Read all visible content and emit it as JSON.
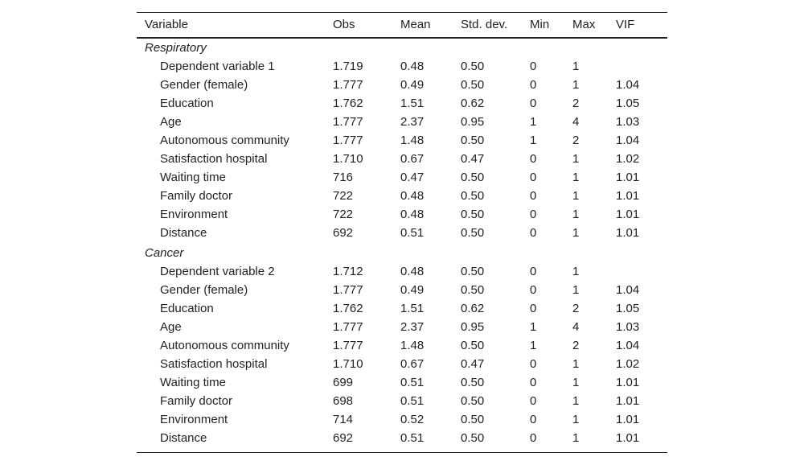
{
  "table": {
    "columns": [
      "Variable",
      "Obs",
      "Mean",
      "Std. dev.",
      "Min",
      "Max",
      "VIF"
    ],
    "groups": [
      {
        "name": "Respiratory",
        "rows": [
          [
            "Dependent variable 1",
            "1.719",
            "0.48",
            "0.50",
            "0",
            "1",
            null
          ],
          [
            "Gender (female)",
            "1.777",
            "0.49",
            "0.50",
            "0",
            "1",
            "1.04"
          ],
          [
            "Education",
            "1.762",
            "1.51",
            "0.62",
            "0",
            "2",
            "1.05"
          ],
          [
            "Age",
            "1.777",
            "2.37",
            "0.95",
            "1",
            "4",
            "1.03"
          ],
          [
            "Autonomous community",
            "1.777",
            "1.48",
            "0.50",
            "1",
            "2",
            "1.04"
          ],
          [
            "Satisfaction hospital",
            "1.710",
            "0.67",
            "0.47",
            "0",
            "1",
            "1.02"
          ],
          [
            "Waiting time",
            "716",
            "0.47",
            "0.50",
            "0",
            "1",
            "1.01"
          ],
          [
            "Family doctor",
            "722",
            "0.48",
            "0.50",
            "0",
            "1",
            "1.01"
          ],
          [
            "Environment",
            "722",
            "0.48",
            "0.50",
            "0",
            "1",
            "1.01"
          ],
          [
            "Distance",
            "692",
            "0.51",
            "0.50",
            "0",
            "1",
            "1.01"
          ]
        ]
      },
      {
        "name": "Cancer",
        "rows": [
          [
            "Dependent variable 2",
            "1.712",
            "0.48",
            "0.50",
            "0",
            "1",
            null
          ],
          [
            "Gender (female)",
            "1.777",
            "0.49",
            "0.50",
            "0",
            "1",
            "1.04"
          ],
          [
            "Education",
            "1.762",
            "1.51",
            "0.62",
            "0",
            "2",
            "1.05"
          ],
          [
            "Age",
            "1.777",
            "2.37",
            "0.95",
            "1",
            "4",
            "1.03"
          ],
          [
            "Autonomous community",
            "1.777",
            "1.48",
            "0.50",
            "1",
            "2",
            "1.04"
          ],
          [
            "Satisfaction hospital",
            "1.710",
            "0.67",
            "0.47",
            "0",
            "1",
            "1.02"
          ],
          [
            "Waiting time",
            "699",
            "0.51",
            "0.50",
            "0",
            "1",
            "1.01"
          ],
          [
            "Family doctor",
            "698",
            "0.51",
            "0.50",
            "0",
            "1",
            "1.01"
          ],
          [
            "Environment",
            "714",
            "0.52",
            "0.50",
            "0",
            "1",
            "1.01"
          ],
          [
            "Distance",
            "692",
            "0.51",
            "0.50",
            "0",
            "1",
            "1.01"
          ]
        ]
      }
    ]
  }
}
